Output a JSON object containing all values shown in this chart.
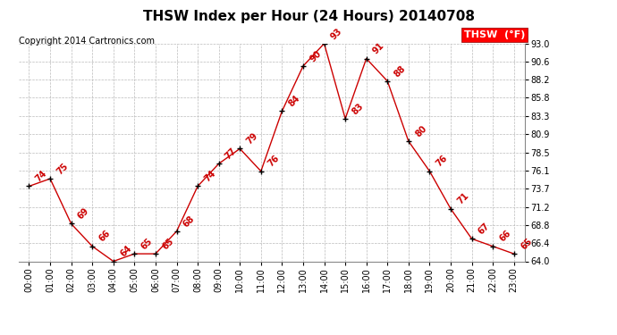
{
  "title": "THSW Index per Hour (24 Hours) 20140708",
  "copyright": "Copyright 2014 Cartronics.com",
  "legend_label": "THSW  (°F)",
  "hours": [
    0,
    1,
    2,
    3,
    4,
    5,
    6,
    7,
    8,
    9,
    10,
    11,
    12,
    13,
    14,
    15,
    16,
    17,
    18,
    19,
    20,
    21,
    22,
    23
  ],
  "values": [
    74,
    75,
    69,
    66,
    64,
    65,
    65,
    68,
    74,
    77,
    79,
    76,
    84,
    90,
    93,
    83,
    91,
    88,
    80,
    76,
    71,
    67,
    66,
    65
  ],
  "ylim": [
    64.0,
    93.0
  ],
  "yticks": [
    64.0,
    66.4,
    68.8,
    71.2,
    73.7,
    76.1,
    78.5,
    80.9,
    83.3,
    85.8,
    88.2,
    90.6,
    93.0
  ],
  "line_color": "#cc0000",
  "marker_color": "#000000",
  "label_color": "#cc0000",
  "bg_color": "#ffffff",
  "grid_color": "#bbbbbb",
  "title_fontsize": 11,
  "copyright_fontsize": 7,
  "label_fontsize": 7,
  "tick_fontsize": 7,
  "legend_fontsize": 8
}
